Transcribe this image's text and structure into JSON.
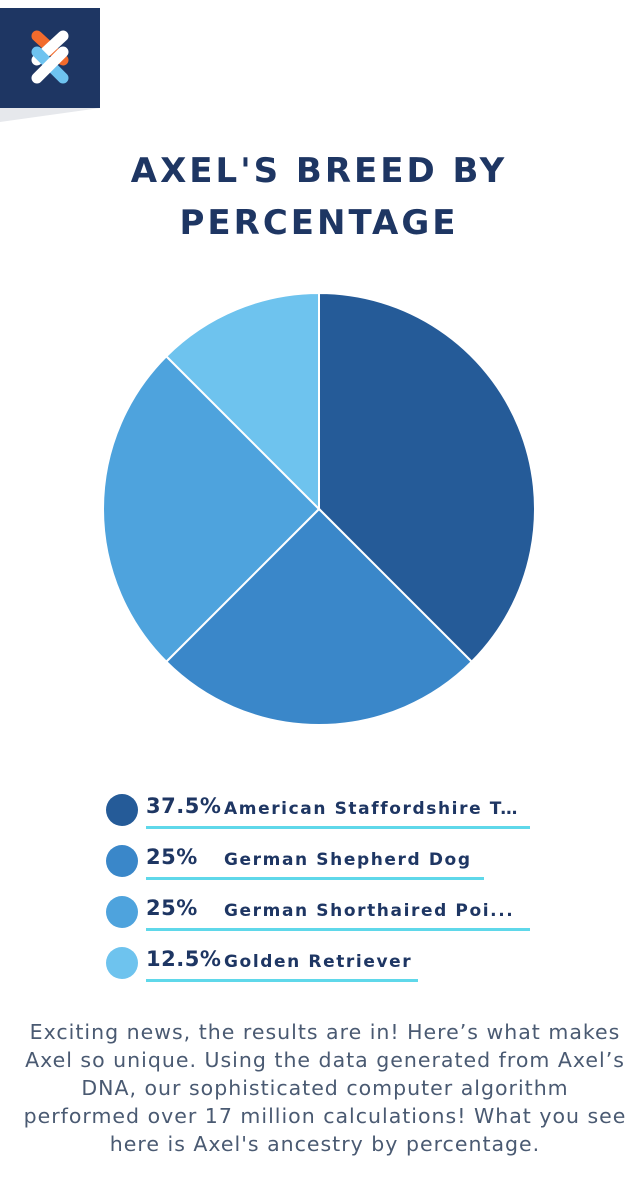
{
  "colors": {
    "navy": "#1e3663",
    "logo_orange": "#f26b2c",
    "logo_blue": "#6ec3f0",
    "underline": "#5fd8ea"
  },
  "header": {
    "logo_icon": "embark-x-logo-icon",
    "title_line1": "AXEL'S BREED BY",
    "title_line2": "PERCENTAGE"
  },
  "chart_data": {
    "type": "pie",
    "title": "AXEL'S BREED BY PERCENTAGE",
    "slices": [
      {
        "label": "American Staffordshire Terrier",
        "display_label": "American Staffordshire T...",
        "pct_label": "37.5%",
        "value": 37.5,
        "color": "#255b98"
      },
      {
        "label": "German Shepherd Dog",
        "display_label": "German Shepherd Dog",
        "pct_label": "25%",
        "value": 25,
        "color": "#3a87c9"
      },
      {
        "label": "German Shorthaired Pointer",
        "display_label": "German Shorthaired Poi...",
        "pct_label": "25%",
        "value": 25,
        "color": "#4ea3dd"
      },
      {
        "label": "Golden Retriever",
        "display_label": "Golden Retriever",
        "pct_label": "12.5%",
        "value": 12.5,
        "color": "#6ec3ee"
      }
    ]
  },
  "description": "Exciting news, the results are in! Here’s what makes Axel so unique. Using the data generated from Axel’s DNA, our sophisticated computer algorithm performed over 17 million calculations! What you see here is Axel's ancestry by percentage."
}
